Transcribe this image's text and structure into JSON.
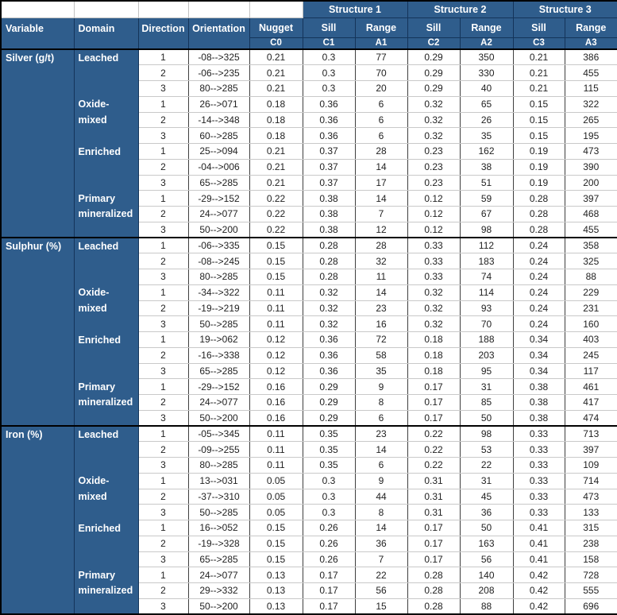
{
  "colors": {
    "header_blue": "#2F5D8C",
    "header_text": "#FFFFFF",
    "grid_light": "#C9C9C9",
    "grid_dark": "#3F3F3F",
    "outer_border": "#000000"
  },
  "table": {
    "header": {
      "structures": [
        "Structure 1",
        "Structure 2",
        "Structure 3"
      ],
      "variable": "Variable",
      "domain": "Domain",
      "direction": "Direction",
      "orientation": "Orientation",
      "nugget": "Nugget",
      "nugget_sub": "C0",
      "sill": "Sill",
      "range": "Range",
      "subs": [
        "C1",
        "A1",
        "C2",
        "A2",
        "C3",
        "A3"
      ]
    },
    "groups": [
      {
        "variable": "Silver (g/t)",
        "domains": [
          {
            "domain": "Leached",
            "rows": [
              {
                "direction": "1",
                "orientation": "-08-->325",
                "nugget": "0.21",
                "sill1": "0.3",
                "range1": "77",
                "sill2": "0.29",
                "range2": "350",
                "sill3": "0.21",
                "range3": "386"
              },
              {
                "direction": "2",
                "orientation": "-06-->235",
                "nugget": "0.21",
                "sill1": "0.3",
                "range1": "70",
                "sill2": "0.29",
                "range2": "330",
                "sill3": "0.21",
                "range3": "455"
              },
              {
                "direction": "3",
                "orientation": "80-->285",
                "nugget": "0.21",
                "sill1": "0.3",
                "range1": "20",
                "sill2": "0.29",
                "range2": "40",
                "sill3": "0.21",
                "range3": "115"
              }
            ]
          },
          {
            "domain": "Oxide-mixed",
            "rows": [
              {
                "direction": "1",
                "orientation": "26-->071",
                "nugget": "0.18",
                "sill1": "0.36",
                "range1": "6",
                "sill2": "0.32",
                "range2": "65",
                "sill3": "0.15",
                "range3": "322"
              },
              {
                "direction": "2",
                "orientation": "-14-->348",
                "nugget": "0.18",
                "sill1": "0.36",
                "range1": "6",
                "sill2": "0.32",
                "range2": "26",
                "sill3": "0.15",
                "range3": "265"
              },
              {
                "direction": "3",
                "orientation": "60-->285",
                "nugget": "0.18",
                "sill1": "0.36",
                "range1": "6",
                "sill2": "0.32",
                "range2": "35",
                "sill3": "0.15",
                "range3": "195"
              }
            ]
          },
          {
            "domain": "Enriched",
            "rows": [
              {
                "direction": "1",
                "orientation": "25-->094",
                "nugget": "0.21",
                "sill1": "0.37",
                "range1": "28",
                "sill2": "0.23",
                "range2": "162",
                "sill3": "0.19",
                "range3": "473"
              },
              {
                "direction": "2",
                "orientation": "-04-->006",
                "nugget": "0.21",
                "sill1": "0.37",
                "range1": "14",
                "sill2": "0.23",
                "range2": "38",
                "sill3": "0.19",
                "range3": "390"
              },
              {
                "direction": "3",
                "orientation": "65-->285",
                "nugget": "0.21",
                "sill1": "0.37",
                "range1": "17",
                "sill2": "0.23",
                "range2": "51",
                "sill3": "0.19",
                "range3": "200"
              }
            ]
          },
          {
            "domain": "Primary mineralized",
            "rows": [
              {
                "direction": "1",
                "orientation": "-29-->152",
                "nugget": "0.22",
                "sill1": "0.38",
                "range1": "14",
                "sill2": "0.12",
                "range2": "59",
                "sill3": "0.28",
                "range3": "397"
              },
              {
                "direction": "2",
                "orientation": "24-->077",
                "nugget": "0.22",
                "sill1": "0.38",
                "range1": "7",
                "sill2": "0.12",
                "range2": "67",
                "sill3": "0.28",
                "range3": "468"
              },
              {
                "direction": "3",
                "orientation": "50-->200",
                "nugget": "0.22",
                "sill1": "0.38",
                "range1": "12",
                "sill2": "0.12",
                "range2": "98",
                "sill3": "0.28",
                "range3": "455"
              }
            ]
          }
        ]
      },
      {
        "variable": "Sulphur (%)",
        "domains": [
          {
            "domain": "Leached",
            "rows": [
              {
                "direction": "1",
                "orientation": "-06-->335",
                "nugget": "0.15",
                "sill1": "0.28",
                "range1": "28",
                "sill2": "0.33",
                "range2": "112",
                "sill3": "0.24",
                "range3": "358"
              },
              {
                "direction": "2",
                "orientation": "-08-->245",
                "nugget": "0.15",
                "sill1": "0.28",
                "range1": "32",
                "sill2": "0.33",
                "range2": "183",
                "sill3": "0.24",
                "range3": "325"
              },
              {
                "direction": "3",
                "orientation": "80-->285",
                "nugget": "0.15",
                "sill1": "0.28",
                "range1": "11",
                "sill2": "0.33",
                "range2": "74",
                "sill3": "0.24",
                "range3": "88"
              }
            ]
          },
          {
            "domain": "Oxide-mixed",
            "rows": [
              {
                "direction": "1",
                "orientation": "-34-->322",
                "nugget": "0.11",
                "sill1": "0.32",
                "range1": "14",
                "sill2": "0.32",
                "range2": "114",
                "sill3": "0.24",
                "range3": "229"
              },
              {
                "direction": "2",
                "orientation": "-19-->219",
                "nugget": "0.11",
                "sill1": "0.32",
                "range1": "23",
                "sill2": "0.32",
                "range2": "93",
                "sill3": "0.24",
                "range3": "231"
              },
              {
                "direction": "3",
                "orientation": "50-->285",
                "nugget": "0.11",
                "sill1": "0.32",
                "range1": "16",
                "sill2": "0.32",
                "range2": "70",
                "sill3": "0.24",
                "range3": "160"
              }
            ]
          },
          {
            "domain": "Enriched",
            "rows": [
              {
                "direction": "1",
                "orientation": "19-->062",
                "nugget": "0.12",
                "sill1": "0.36",
                "range1": "72",
                "sill2": "0.18",
                "range2": "188",
                "sill3": "0.34",
                "range3": "403"
              },
              {
                "direction": "2",
                "orientation": "-16-->338",
                "nugget": "0.12",
                "sill1": "0.36",
                "range1": "58",
                "sill2": "0.18",
                "range2": "203",
                "sill3": "0.34",
                "range3": "245"
              },
              {
                "direction": "3",
                "orientation": "65-->285",
                "nugget": "0.12",
                "sill1": "0.36",
                "range1": "35",
                "sill2": "0.18",
                "range2": "95",
                "sill3": "0.34",
                "range3": "117"
              }
            ]
          },
          {
            "domain": "Primary mineralized",
            "rows": [
              {
                "direction": "1",
                "orientation": "-29-->152",
                "nugget": "0.16",
                "sill1": "0.29",
                "range1": "9",
                "sill2": "0.17",
                "range2": "31",
                "sill3": "0.38",
                "range3": "461"
              },
              {
                "direction": "2",
                "orientation": "24-->077",
                "nugget": "0.16",
                "sill1": "0.29",
                "range1": "8",
                "sill2": "0.17",
                "range2": "85",
                "sill3": "0.38",
                "range3": "417"
              },
              {
                "direction": "3",
                "orientation": "50-->200",
                "nugget": "0.16",
                "sill1": "0.29",
                "range1": "6",
                "sill2": "0.17",
                "range2": "50",
                "sill3": "0.38",
                "range3": "474"
              }
            ]
          }
        ]
      },
      {
        "variable": "Iron (%)",
        "domains": [
          {
            "domain": "Leached",
            "rows": [
              {
                "direction": "1",
                "orientation": "-05-->345",
                "nugget": "0.11",
                "sill1": "0.35",
                "range1": "23",
                "sill2": "0.22",
                "range2": "98",
                "sill3": "0.33",
                "range3": "713"
              },
              {
                "direction": "2",
                "orientation": "-09-->255",
                "nugget": "0.11",
                "sill1": "0.35",
                "range1": "14",
                "sill2": "0.22",
                "range2": "53",
                "sill3": "0.33",
                "range3": "397"
              },
              {
                "direction": "3",
                "orientation": "80-->285",
                "nugget": "0.11",
                "sill1": "0.35",
                "range1": "6",
                "sill2": "0.22",
                "range2": "22",
                "sill3": "0.33",
                "range3": "109"
              }
            ]
          },
          {
            "domain": "Oxide-mixed",
            "rows": [
              {
                "direction": "1",
                "orientation": "13-->031",
                "nugget": "0.05",
                "sill1": "0.3",
                "range1": "9",
                "sill2": "0.31",
                "range2": "31",
                "sill3": "0.33",
                "range3": "714"
              },
              {
                "direction": "2",
                "orientation": "-37-->310",
                "nugget": "0.05",
                "sill1": "0.3",
                "range1": "44",
                "sill2": "0.31",
                "range2": "45",
                "sill3": "0.33",
                "range3": "473"
              },
              {
                "direction": "3",
                "orientation": "50-->285",
                "nugget": "0.05",
                "sill1": "0.3",
                "range1": "8",
                "sill2": "0.31",
                "range2": "36",
                "sill3": "0.33",
                "range3": "133"
              }
            ]
          },
          {
            "domain": "Enriched",
            "rows": [
              {
                "direction": "1",
                "orientation": "16-->052",
                "nugget": "0.15",
                "sill1": "0.26",
                "range1": "14",
                "sill2": "0.17",
                "range2": "50",
                "sill3": "0.41",
                "range3": "315"
              },
              {
                "direction": "2",
                "orientation": "-19-->328",
                "nugget": "0.15",
                "sill1": "0.26",
                "range1": "36",
                "sill2": "0.17",
                "range2": "163",
                "sill3": "0.41",
                "range3": "238"
              },
              {
                "direction": "3",
                "orientation": "65-->285",
                "nugget": "0.15",
                "sill1": "0.26",
                "range1": "7",
                "sill2": "0.17",
                "range2": "56",
                "sill3": "0.41",
                "range3": "158"
              }
            ]
          },
          {
            "domain": "Primary mineralized",
            "rows": [
              {
                "direction": "1",
                "orientation": "24-->077",
                "nugget": "0.13",
                "sill1": "0.17",
                "range1": "22",
                "sill2": "0.28",
                "range2": "140",
                "sill3": "0.42",
                "range3": "728"
              },
              {
                "direction": "2",
                "orientation": "29-->332",
                "nugget": "0.13",
                "sill1": "0.17",
                "range1": "56",
                "sill2": "0.28",
                "range2": "208",
                "sill3": "0.42",
                "range3": "555"
              },
              {
                "direction": "3",
                "orientation": "50-->200",
                "nugget": "0.13",
                "sill1": "0.17",
                "range1": "15",
                "sill2": "0.28",
                "range2": "88",
                "sill3": "0.42",
                "range3": "696"
              }
            ]
          }
        ]
      }
    ]
  }
}
